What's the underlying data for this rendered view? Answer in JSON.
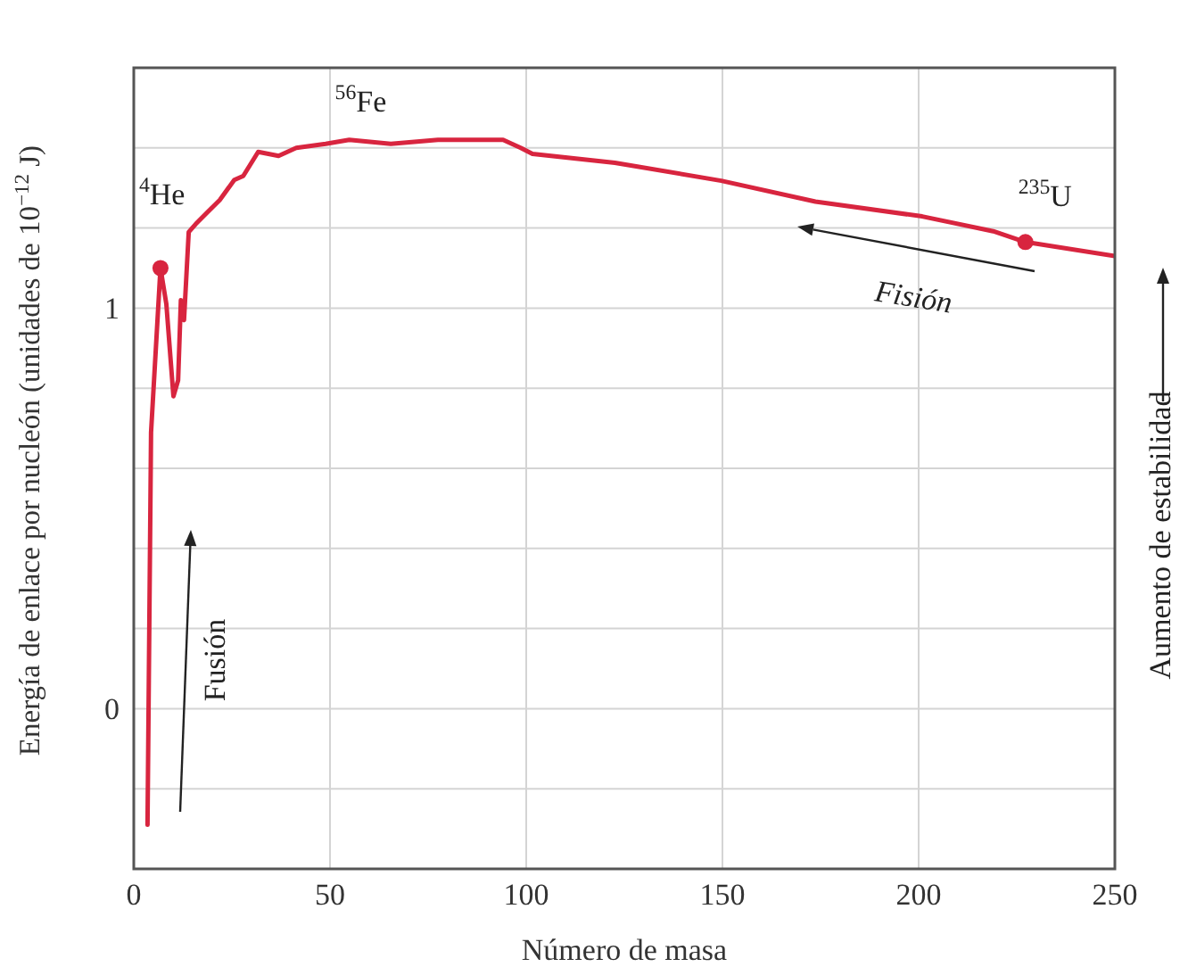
{
  "chart_data": {
    "type": "line",
    "xlabel": "Número de masa",
    "ylabel": "Energía de enlace por nucleón (unidades de 10$^{−12}$ J)",
    "xlim": [
      0,
      250
    ],
    "xticks": [
      0,
      50,
      100,
      150,
      200,
      250
    ],
    "ylim": [
      -0.4,
      1.6
    ],
    "yticks": [
      {
        "value": -0.2,
        "label": null
      },
      0,
      {
        "value": 0.2,
        "label": null
      },
      {
        "value": 0.4,
        "label": null
      },
      {
        "value": 0.6,
        "label": null
      },
      {
        "value": 0.8,
        "label": null
      },
      1,
      {
        "value": 1.2,
        "label": null
      },
      {
        "value": 1.4,
        "label": null
      }
    ],
    "grid": true,
    "line_style": "solid",
    "marker": "none",
    "series": [
      {
        "color": "#d8253f",
        "x": [
          3.5,
          4.4,
          6.8,
          8.3,
          10.1,
          11.3,
          12.0,
          12.8,
          14.0,
          15.8,
          18.8,
          21.9,
          25.6,
          27.9,
          31.7,
          36.9,
          41.4,
          48.9,
          54.9,
          65.5,
          77.5,
          94.1,
          98.6,
          101.6,
          122.6,
          149.7,
          173.7,
          200.9,
          219,
          227.2,
          250
        ],
        "values": [
          -0.29,
          0.69,
          1.1,
          1.01,
          0.78,
          0.82,
          1.02,
          0.97,
          1.19,
          1.21,
          1.24,
          1.27,
          1.32,
          1.33,
          1.39,
          1.38,
          1.4,
          1.41,
          1.42,
          1.41,
          1.42,
          1.42,
          1.4,
          1.385,
          1.363,
          1.318,
          1.266,
          1.229,
          1.192,
          1.165,
          1.13
        ]
      },
      {
        "type": "scatter",
        "marker": "circle",
        "color": "#d8253f",
        "x": [
          6.8,
          227.2
        ],
        "values": [
          1.1,
          1.165
        ]
      }
    ],
    "annotations": [
      {
        "text": "$^{4}$He",
        "x": 6.8,
        "y": 1.1
      },
      {
        "text": "$^{56}$Fe",
        "x": 54.9,
        "y": 1.42
      },
      {
        "text": "$^{235}$U",
        "x": 227.2,
        "y": 1.165
      },
      "Fusión",
      "Fisión",
      "Aumento de estabilidad"
    ]
  }
}
